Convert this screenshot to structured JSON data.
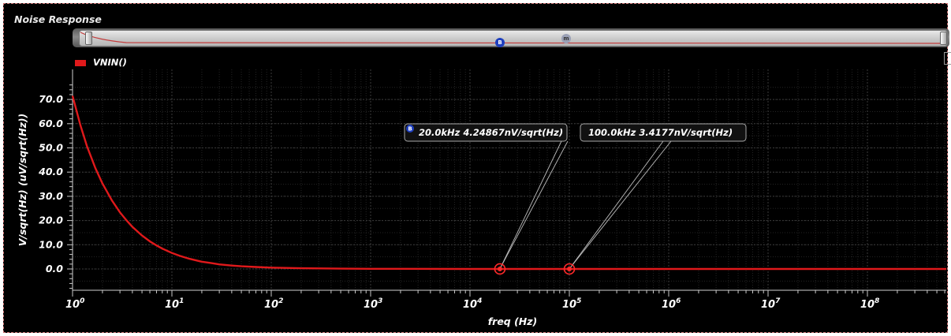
{
  "panel": {
    "title": "Noise Response"
  },
  "legend": {
    "label": "VNIN()",
    "color": "#e0191b"
  },
  "scroller": {
    "marker_b": "B",
    "marker_m": "m"
  },
  "chart_data": {
    "type": "line",
    "title": "Noise Response",
    "xlabel": "freq (Hz)",
    "ylabel": "V/sqrt(Hz) (uV/sqrt(Hz))",
    "x_scale": "log",
    "xlim": [
      1,
      1000000000.0
    ],
    "ylim": [
      -9,
      78
    ],
    "grid": true,
    "legend_position": "top-left",
    "x_ticks": [
      {
        "exp": "0",
        "value": 1
      },
      {
        "exp": "1",
        "value": 10
      },
      {
        "exp": "2",
        "value": 100
      },
      {
        "exp": "3",
        "value": 1000
      },
      {
        "exp": "4",
        "value": 10000
      },
      {
        "exp": "5",
        "value": 100000
      },
      {
        "exp": "6",
        "value": 1000000
      },
      {
        "exp": "7",
        "value": 10000000
      },
      {
        "exp": "8",
        "value": 100000000
      }
    ],
    "y_ticks": [
      {
        "label": "70.0",
        "value": 70
      },
      {
        "label": "60.0",
        "value": 60
      },
      {
        "label": "50.0",
        "value": 50
      },
      {
        "label": "40.0",
        "value": 40
      },
      {
        "label": "30.0",
        "value": 30
      },
      {
        "label": "20.0",
        "value": 20
      },
      {
        "label": "10.0",
        "value": 10
      },
      {
        "label": "0.0",
        "value": 0
      }
    ],
    "series": [
      {
        "name": "VNIN()",
        "color": "#e0191b",
        "x": [
          1,
          1.2,
          1.4,
          1.7,
          2,
          2.5,
          3,
          3.5,
          4,
          5,
          6,
          7,
          8,
          10,
          12,
          15,
          20,
          25,
          30,
          40,
          50,
          70,
          100,
          200,
          500,
          1000,
          10000,
          20000,
          100000,
          1000000,
          10000000,
          100000000,
          1000000000
        ],
        "y": [
          71.5,
          59.3,
          50.6,
          41.6,
          35.3,
          28.2,
          23.4,
          20.0,
          17.4,
          13.8,
          11.4,
          9.7,
          8.4,
          6.6,
          5.4,
          4.2,
          3.0,
          2.4,
          1.9,
          1.4,
          1.1,
          0.8,
          0.55,
          0.28,
          0.12,
          0.06,
          0.006,
          0.00425,
          0.0034,
          0.0033,
          0.0033,
          0.0033,
          0.0033
        ]
      }
    ],
    "markers": [
      {
        "id": "B",
        "x": 20000,
        "y": 0.00424867,
        "label": "20.0kHz 4.24867nV/sqrt(Hz)"
      },
      {
        "id": "M",
        "x": 100000,
        "y": 0.0034177,
        "label": "100.0kHz 3.4177nV/sqrt(Hz)"
      }
    ],
    "colors": {
      "background": "#000000",
      "grid": "#3a3a3a",
      "minor_grid": "#242424",
      "marker_circle": "#ff2a2a",
      "marker_badge": "#1e3fbf"
    }
  }
}
